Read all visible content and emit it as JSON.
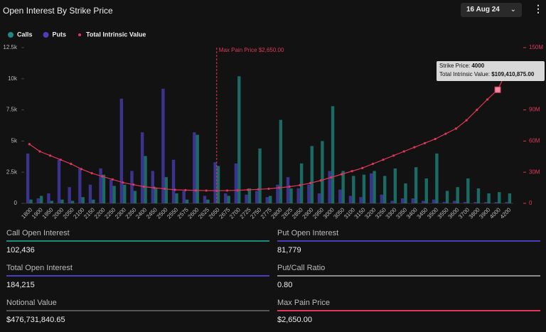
{
  "header": {
    "title": "Open Interest By Strike Price",
    "date": "16 Aug 24"
  },
  "chart_data": {
    "type": "bar",
    "categories": [
      "1800",
      "1900",
      "1950",
      "2000",
      "2050",
      "2100",
      "2150",
      "2200",
      "2250",
      "2300",
      "2350",
      "2400",
      "2450",
      "2500",
      "2550",
      "2575",
      "2600",
      "2625",
      "2650",
      "2675",
      "2700",
      "2725",
      "2750",
      "2775",
      "2800",
      "2825",
      "2850",
      "2900",
      "2950",
      "3000",
      "3050",
      "3100",
      "3150",
      "3200",
      "3250",
      "3300",
      "3350",
      "3400",
      "3450",
      "3500",
      "3550",
      "3600",
      "3700",
      "3800",
      "3900",
      "4000",
      "4200"
    ],
    "series": [
      {
        "name": "Calls",
        "color": "#1f8a80",
        "values": [
          300,
          600,
          200,
          300,
          200,
          500,
          300,
          2300,
          1400,
          1500,
          1000,
          3800,
          1200,
          2100,
          800,
          300,
          5500,
          300,
          3000,
          600,
          10200,
          1200,
          4400,
          600,
          6700,
          1200,
          3200,
          4600,
          5000,
          7800,
          2600,
          2200,
          2300,
          2600,
          2200,
          2800,
          1600,
          2900,
          2000,
          4000,
          1000,
          1300,
          2000,
          1200,
          800,
          900,
          800
        ]
      },
      {
        "name": "Puts",
        "color": "#4a3fb8",
        "values": [
          4000,
          400,
          800,
          3500,
          1300,
          2800,
          1500,
          2800,
          1900,
          8400,
          2600,
          5700,
          2600,
          9200,
          3500,
          1000,
          5700,
          600,
          3300,
          800,
          3200,
          700,
          1000,
          500,
          1500,
          2100,
          1200,
          1500,
          800,
          2600,
          1100,
          600,
          500,
          2400,
          700,
          200,
          400,
          400,
          200,
          300,
          100,
          200,
          100,
          100,
          100,
          100,
          100
        ]
      },
      {
        "name": "Total Intrinsic Value",
        "color": "#e0365a",
        "axis": "y2",
        "values": [
          57000000,
          50000000,
          46000000,
          42000000,
          38000000,
          33000000,
          29000000,
          26000000,
          23000000,
          20000000,
          18000000,
          16000000,
          15000000,
          14000000,
          13000000,
          12700000,
          12400000,
          12300000,
          12200000,
          12300000,
          12500000,
          13000000,
          13500000,
          14000000,
          15000000,
          16000000,
          17500000,
          19500000,
          22000000,
          25000000,
          28000000,
          31000000,
          34000000,
          38000000,
          42000000,
          46000000,
          50000000,
          54000000,
          58000000,
          62000000,
          67000000,
          72000000,
          80000000,
          90000000,
          100000000,
          109410875,
          130000000
        ]
      }
    ],
    "ylim": [
      0,
      12500
    ],
    "yticks": [
      0,
      {
        "value": 2500,
        "label": "2.5k"
      },
      {
        "value": 5000,
        "label": "5k"
      },
      {
        "value": 7500,
        "label": "7.5k"
      },
      {
        "value": 10000,
        "label": "10k"
      },
      {
        "value": 12500,
        "label": "12.5k"
      }
    ],
    "y2lim": [
      0,
      150000000
    ],
    "y2ticks": [
      0,
      {
        "value": 30000000,
        "label": "30M"
      },
      {
        "value": 60000000,
        "label": "60M"
      },
      {
        "value": 90000000,
        "label": "90M"
      },
      {
        "value": 120000000,
        "label": "120M"
      },
      {
        "value": 150000000,
        "label": "150M"
      }
    ],
    "annotation": {
      "text": "Max Pain Price $2,650.00",
      "x": "2650"
    },
    "tooltip": {
      "x": "4000",
      "strike_label": "Strike Price:",
      "strike": "4000",
      "value_label": "Total Intrinsic Value:",
      "value": "$109,410,875.00"
    }
  },
  "stats": [
    {
      "label": "Call Open Interest",
      "value": "102,436",
      "color": "#1f8a80"
    },
    {
      "label": "Put Open Interest",
      "value": "81,779",
      "color": "#4a3fb8"
    },
    {
      "label": "Total Open Interest",
      "value": "184,215",
      "color": "#4a3fb8"
    },
    {
      "label": "Put/Call Ratio",
      "value": "0.80",
      "color": "#8a8a8a"
    },
    {
      "label": "Notional Value",
      "value": "$476,731,840.65",
      "color": "#555"
    },
    {
      "label": "Max Pain Price",
      "value": "$2,650.00",
      "color": "#e0365a"
    }
  ]
}
